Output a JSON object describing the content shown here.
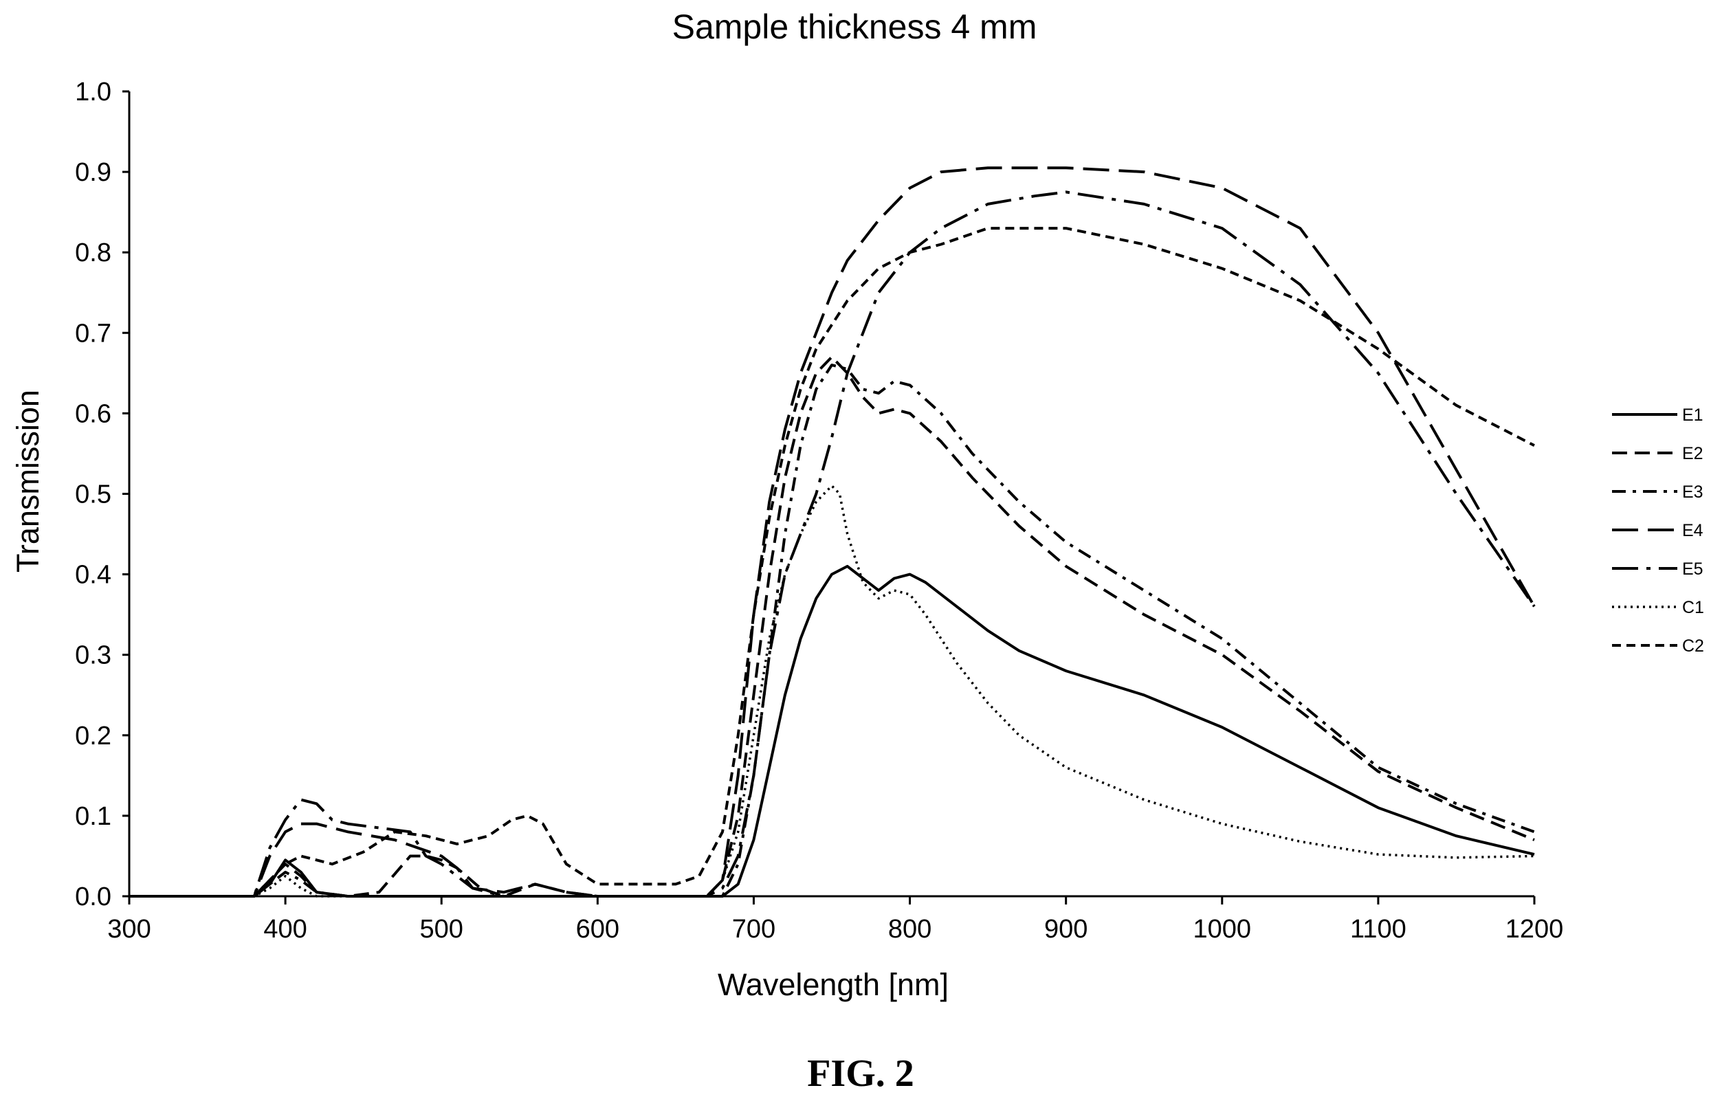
{
  "chart_data": {
    "type": "line",
    "title": "Sample thickness 4 mm",
    "xlabel": "Wavelength [nm]",
    "ylabel": "Transmission",
    "xlim": [
      300,
      1200
    ],
    "ylim": [
      0.0,
      1.0
    ],
    "x_ticks": [
      "300",
      "400",
      "500",
      "600",
      "700",
      "800",
      "900",
      "1000",
      "1100",
      "1200"
    ],
    "y_ticks": [
      "0.0",
      "0.1",
      "0.2",
      "0.3",
      "0.4",
      "0.5",
      "0.6",
      "0.7",
      "0.8",
      "0.9",
      "1.0"
    ],
    "grid": false,
    "legend_position": "right",
    "caption": "FIG. 2",
    "series": [
      {
        "name": "E1",
        "dash": "solid",
        "points": [
          [
            300,
            0
          ],
          [
            380,
            0
          ],
          [
            390,
            0.015
          ],
          [
            400,
            0.045
          ],
          [
            410,
            0.03
          ],
          [
            420,
            0.005
          ],
          [
            440,
            0
          ],
          [
            680,
            0
          ],
          [
            690,
            0.015
          ],
          [
            700,
            0.07
          ],
          [
            710,
            0.16
          ],
          [
            720,
            0.25
          ],
          [
            730,
            0.32
          ],
          [
            740,
            0.37
          ],
          [
            750,
            0.4
          ],
          [
            760,
            0.41
          ],
          [
            770,
            0.395
          ],
          [
            780,
            0.38
          ],
          [
            790,
            0.395
          ],
          [
            800,
            0.4
          ],
          [
            810,
            0.39
          ],
          [
            830,
            0.36
          ],
          [
            850,
            0.33
          ],
          [
            870,
            0.305
          ],
          [
            900,
            0.28
          ],
          [
            950,
            0.25
          ],
          [
            1000,
            0.21
          ],
          [
            1050,
            0.16
          ],
          [
            1100,
            0.11
          ],
          [
            1150,
            0.075
          ],
          [
            1200,
            0.052
          ]
        ]
      },
      {
        "name": "E2",
        "dash": "long",
        "points": [
          [
            300,
            0
          ],
          [
            380,
            0
          ],
          [
            390,
            0.02
          ],
          [
            400,
            0.04
          ],
          [
            410,
            0.025
          ],
          [
            420,
            0.005
          ],
          [
            440,
            0
          ],
          [
            460,
            0.005
          ],
          [
            480,
            0.05
          ],
          [
            490,
            0.05
          ],
          [
            500,
            0.045
          ],
          [
            510,
            0.035
          ],
          [
            525,
            0.01
          ],
          [
            540,
            0
          ],
          [
            560,
            0.015
          ],
          [
            580,
            0.005
          ],
          [
            600,
            0
          ],
          [
            670,
            0
          ],
          [
            680,
            0.02
          ],
          [
            690,
            0.1
          ],
          [
            700,
            0.25
          ],
          [
            710,
            0.4
          ],
          [
            720,
            0.52
          ],
          [
            730,
            0.6
          ],
          [
            740,
            0.65
          ],
          [
            750,
            0.67
          ],
          [
            760,
            0.65
          ],
          [
            770,
            0.62
          ],
          [
            780,
            0.6
          ],
          [
            790,
            0.605
          ],
          [
            800,
            0.6
          ],
          [
            820,
            0.565
          ],
          [
            840,
            0.52
          ],
          [
            870,
            0.46
          ],
          [
            900,
            0.41
          ],
          [
            950,
            0.35
          ],
          [
            1000,
            0.3
          ],
          [
            1050,
            0.23
          ],
          [
            1100,
            0.155
          ],
          [
            1150,
            0.11
          ],
          [
            1200,
            0.07
          ]
        ]
      },
      {
        "name": "E3",
        "dash": "dashdot",
        "points": [
          [
            300,
            0
          ],
          [
            380,
            0
          ],
          [
            390,
            0.015
          ],
          [
            400,
            0.03
          ],
          [
            410,
            0.02
          ],
          [
            420,
            0.005
          ],
          [
            440,
            0
          ],
          [
            680,
            0
          ],
          [
            690,
            0.04
          ],
          [
            700,
            0.15
          ],
          [
            710,
            0.3
          ],
          [
            720,
            0.45
          ],
          [
            730,
            0.56
          ],
          [
            740,
            0.63
          ],
          [
            750,
            0.66
          ],
          [
            760,
            0.655
          ],
          [
            770,
            0.63
          ],
          [
            780,
            0.625
          ],
          [
            790,
            0.64
          ],
          [
            800,
            0.635
          ],
          [
            820,
            0.6
          ],
          [
            840,
            0.55
          ],
          [
            870,
            0.49
          ],
          [
            900,
            0.44
          ],
          [
            950,
            0.38
          ],
          [
            1000,
            0.32
          ],
          [
            1050,
            0.24
          ],
          [
            1100,
            0.16
          ],
          [
            1150,
            0.115
          ],
          [
            1200,
            0.08
          ]
        ]
      },
      {
        "name": "E4",
        "dash": "longdash",
        "points": [
          [
            300,
            0
          ],
          [
            380,
            0
          ],
          [
            390,
            0.05
          ],
          [
            400,
            0.08
          ],
          [
            410,
            0.09
          ],
          [
            420,
            0.09
          ],
          [
            440,
            0.08
          ],
          [
            470,
            0.07
          ],
          [
            500,
            0.05
          ],
          [
            510,
            0.035
          ],
          [
            520,
            0.01
          ],
          [
            540,
            0.005
          ],
          [
            560,
            0.015
          ],
          [
            580,
            0.005
          ],
          [
            600,
            0
          ],
          [
            670,
            0
          ],
          [
            680,
            0.02
          ],
          [
            690,
            0.15
          ],
          [
            700,
            0.35
          ],
          [
            710,
            0.49
          ],
          [
            720,
            0.58
          ],
          [
            730,
            0.65
          ],
          [
            740,
            0.7
          ],
          [
            750,
            0.75
          ],
          [
            760,
            0.79
          ],
          [
            780,
            0.84
          ],
          [
            800,
            0.88
          ],
          [
            820,
            0.9
          ],
          [
            850,
            0.905
          ],
          [
            900,
            0.905
          ],
          [
            950,
            0.9
          ],
          [
            1000,
            0.88
          ],
          [
            1050,
            0.83
          ],
          [
            1100,
            0.7
          ],
          [
            1150,
            0.53
          ],
          [
            1200,
            0.36
          ]
        ]
      },
      {
        "name": "E5",
        "dash": "longdashdot",
        "points": [
          [
            300,
            0
          ],
          [
            380,
            0
          ],
          [
            390,
            0.06
          ],
          [
            400,
            0.095
          ],
          [
            410,
            0.12
          ],
          [
            420,
            0.115
          ],
          [
            430,
            0.095
          ],
          [
            440,
            0.09
          ],
          [
            460,
            0.085
          ],
          [
            480,
            0.08
          ],
          [
            490,
            0.05
          ],
          [
            500,
            0.04
          ],
          [
            520,
            0.01
          ],
          [
            540,
            0
          ],
          [
            670,
            0
          ],
          [
            680,
            0.01
          ],
          [
            690,
            0.05
          ],
          [
            700,
            0.15
          ],
          [
            710,
            0.3
          ],
          [
            720,
            0.4
          ],
          [
            730,
            0.45
          ],
          [
            740,
            0.5
          ],
          [
            750,
            0.57
          ],
          [
            760,
            0.65
          ],
          [
            780,
            0.75
          ],
          [
            800,
            0.8
          ],
          [
            820,
            0.83
          ],
          [
            850,
            0.86
          ],
          [
            880,
            0.87
          ],
          [
            900,
            0.875
          ],
          [
            950,
            0.86
          ],
          [
            1000,
            0.83
          ],
          [
            1050,
            0.76
          ],
          [
            1100,
            0.65
          ],
          [
            1150,
            0.5
          ],
          [
            1200,
            0.36
          ]
        ]
      },
      {
        "name": "C1",
        "dash": "dotted",
        "points": [
          [
            300,
            0
          ],
          [
            380,
            0
          ],
          [
            390,
            0.01
          ],
          [
            400,
            0.025
          ],
          [
            410,
            0.01
          ],
          [
            420,
            0
          ],
          [
            670,
            0
          ],
          [
            680,
            0.02
          ],
          [
            690,
            0.08
          ],
          [
            700,
            0.2
          ],
          [
            710,
            0.32
          ],
          [
            720,
            0.4
          ],
          [
            730,
            0.45
          ],
          [
            740,
            0.49
          ],
          [
            750,
            0.51
          ],
          [
            755,
            0.5
          ],
          [
            760,
            0.45
          ],
          [
            770,
            0.39
          ],
          [
            780,
            0.37
          ],
          [
            790,
            0.38
          ],
          [
            800,
            0.375
          ],
          [
            810,
            0.35
          ],
          [
            830,
            0.29
          ],
          [
            850,
            0.24
          ],
          [
            870,
            0.2
          ],
          [
            900,
            0.16
          ],
          [
            950,
            0.12
          ],
          [
            1000,
            0.09
          ],
          [
            1050,
            0.068
          ],
          [
            1100,
            0.052
          ],
          [
            1150,
            0.048
          ],
          [
            1200,
            0.05
          ]
        ]
      },
      {
        "name": "C2",
        "dash": "shortdash",
        "points": [
          [
            300,
            0
          ],
          [
            380,
            0
          ],
          [
            390,
            0.02
          ],
          [
            400,
            0.04
          ],
          [
            410,
            0.05
          ],
          [
            420,
            0.045
          ],
          [
            430,
            0.04
          ],
          [
            450,
            0.055
          ],
          [
            470,
            0.08
          ],
          [
            490,
            0.075
          ],
          [
            510,
            0.065
          ],
          [
            530,
            0.075
          ],
          [
            545,
            0.095
          ],
          [
            555,
            0.1
          ],
          [
            565,
            0.09
          ],
          [
            580,
            0.04
          ],
          [
            600,
            0.015
          ],
          [
            620,
            0.015
          ],
          [
            650,
            0.015
          ],
          [
            665,
            0.025
          ],
          [
            680,
            0.08
          ],
          [
            690,
            0.2
          ],
          [
            700,
            0.35
          ],
          [
            710,
            0.47
          ],
          [
            720,
            0.56
          ],
          [
            730,
            0.63
          ],
          [
            740,
            0.68
          ],
          [
            750,
            0.71
          ],
          [
            760,
            0.74
          ],
          [
            780,
            0.78
          ],
          [
            800,
            0.8
          ],
          [
            820,
            0.81
          ],
          [
            850,
            0.83
          ],
          [
            870,
            0.83
          ],
          [
            900,
            0.83
          ],
          [
            950,
            0.81
          ],
          [
            1000,
            0.78
          ],
          [
            1050,
            0.74
          ],
          [
            1100,
            0.68
          ],
          [
            1150,
            0.61
          ],
          [
            1200,
            0.56
          ]
        ]
      }
    ]
  }
}
